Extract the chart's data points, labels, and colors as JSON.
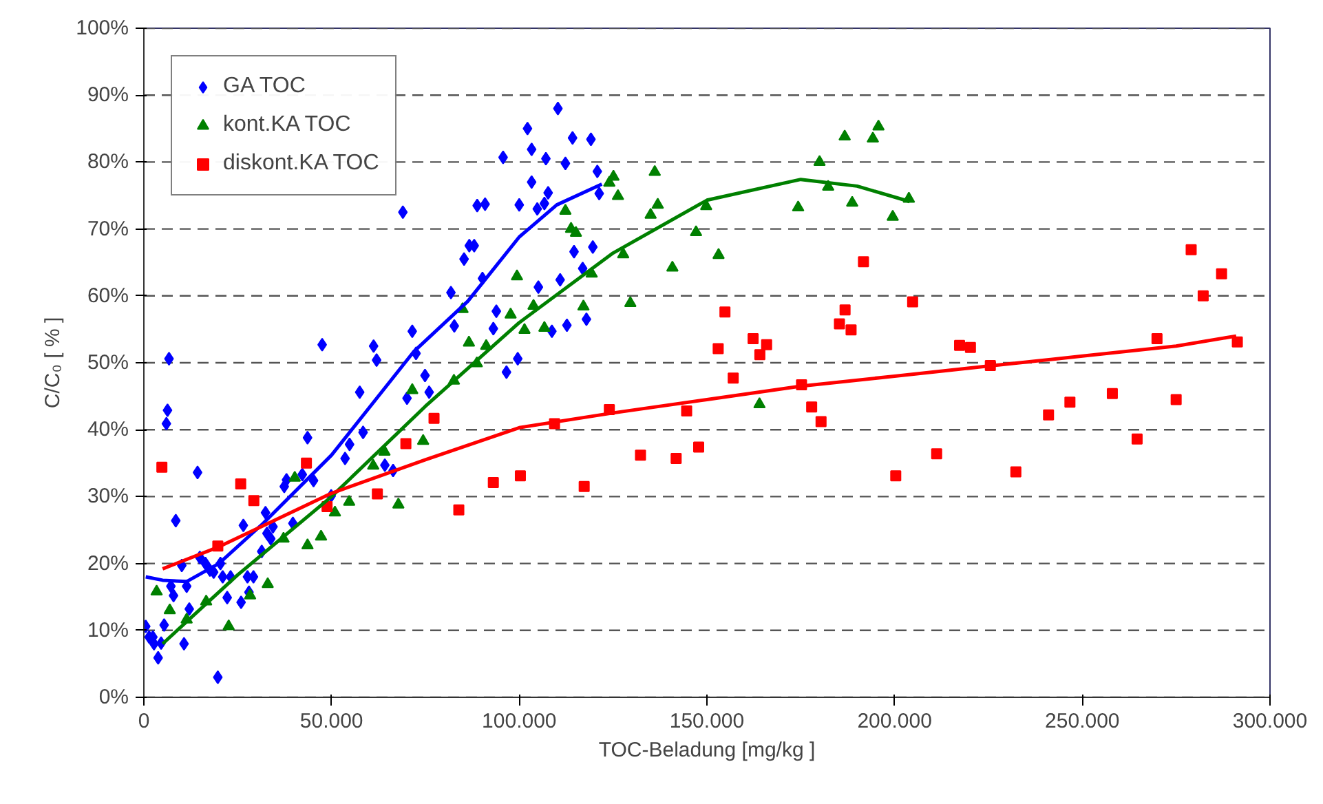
{
  "chart_data": {
    "type": "scatter",
    "xlabel": "TOC-Beladung [mg/kg ]",
    "ylabel": "C/C₀ [ % ]",
    "xlim": [
      0,
      300000
    ],
    "ylim": [
      0,
      100
    ],
    "xticks": [
      {
        "value": 0,
        "label": "0"
      },
      {
        "value": 50000,
        "label": "50.000"
      },
      {
        "value": 100000,
        "label": "100.000"
      },
      {
        "value": 150000,
        "label": "150.000"
      },
      {
        "value": 200000,
        "label": "200.000"
      },
      {
        "value": 250000,
        "label": "250.000"
      },
      {
        "value": 300000,
        "label": "300.000"
      }
    ],
    "yticks": [
      {
        "value": 0,
        "label": "0%"
      },
      {
        "value": 10,
        "label": "10%"
      },
      {
        "value": 20,
        "label": "20%"
      },
      {
        "value": 30,
        "label": "30%"
      },
      {
        "value": 40,
        "label": "40%"
      },
      {
        "value": 50,
        "label": "50%"
      },
      {
        "value": 60,
        "label": "60%"
      },
      {
        "value": 70,
        "label": "70%"
      },
      {
        "value": 80,
        "label": "80%"
      },
      {
        "value": 90,
        "label": "90%"
      },
      {
        "value": 100,
        "label": "100%"
      }
    ],
    "grid": "y",
    "legend": "top left",
    "series": [
      {
        "name": "GA TOC",
        "marker": "diamond",
        "color": "#0000ff",
        "x": [
          500,
          1400,
          2400,
          2700,
          3800,
          4600,
          5400,
          6000,
          6300,
          6700,
          7200,
          7900,
          8500,
          10100,
          10700,
          11400,
          12100,
          14300,
          14900,
          16400,
          17600,
          18600,
          19700,
          20400,
          21000,
          22200,
          23100,
          25900,
          26500,
          28000,
          27600,
          29200,
          31400,
          32400,
          32800,
          33800,
          34400,
          37400,
          38000,
          39700,
          42200,
          43600,
          45200,
          47500,
          49900,
          53600,
          54800,
          57500,
          58400,
          61200,
          62000,
          64200,
          66400,
          70100,
          71500,
          69000,
          72500,
          74900,
          76000,
          81800,
          82700,
          85300,
          86700,
          88000,
          88800,
          90200,
          90900,
          93900,
          93100,
          95700,
          96600,
          99600,
          100000,
          102200,
          103300,
          103300,
          104800,
          105100,
          106700,
          107100,
          107700,
          108700,
          110300,
          110900,
          112300,
          112700,
          114200,
          114600,
          116900,
          117900,
          119100,
          119600,
          120800,
          121300
        ],
        "values": [
          10.6,
          9.0,
          9.0,
          8.0,
          5.9,
          8.1,
          10.8,
          40.9,
          42.9,
          50.6,
          16.6,
          15.2,
          26.4,
          19.7,
          8.0,
          16.6,
          13.2,
          33.6,
          20.9,
          20.0,
          19.0,
          18.7,
          3.0,
          20.0,
          18.0,
          14.9,
          18.0,
          14.2,
          25.7,
          15.7,
          18.0,
          18.0,
          21.8,
          27.6,
          24.5,
          23.7,
          25.5,
          31.5,
          32.5,
          26.0,
          33.3,
          38.8,
          32.4,
          52.7,
          30.1,
          35.7,
          37.8,
          45.6,
          39.6,
          52.5,
          50.4,
          34.7,
          33.9,
          44.7,
          54.7,
          72.5,
          51.4,
          48.1,
          45.6,
          60.5,
          55.5,
          65.5,
          67.5,
          67.5,
          73.5,
          62.6,
          73.7,
          57.7,
          55.1,
          80.7,
          48.6,
          50.6,
          73.6,
          85.0,
          81.9,
          77.0,
          73.0,
          61.3,
          73.8,
          80.5,
          75.4,
          54.7,
          88.0,
          62.4,
          79.8,
          55.6,
          83.6,
          66.6,
          64.1,
          56.5,
          83.4,
          67.3,
          78.6,
          75.3
        ]
      },
      {
        "name": "kont.KA TOC",
        "marker": "triangle",
        "color": "#008000",
        "x": [
          3400,
          6900,
          11400,
          16600,
          22600,
          28300,
          33000,
          37200,
          40200,
          43600,
          47200,
          50900,
          54700,
          61100,
          64100,
          67800,
          71500,
          74400,
          82600,
          84900,
          86600,
          88700,
          91200,
          97700,
          99400,
          101400,
          103800,
          106700,
          112300,
          113800,
          115100,
          117100,
          119300,
          124000,
          125100,
          126300,
          127700,
          129600,
          135000,
          136100,
          136900,
          140800,
          147100,
          149800,
          153100,
          164000,
          174300,
          180000,
          182300,
          186700,
          188700,
          194200,
          195700,
          199500,
          203800
        ],
        "values": [
          15.8,
          13.0,
          11.6,
          14.3,
          10.6,
          15.2,
          16.9,
          23.7,
          32.8,
          22.7,
          24.0,
          27.6,
          29.2,
          34.6,
          36.7,
          28.8,
          45.9,
          38.3,
          47.3,
          58.0,
          53.0,
          49.9,
          52.5,
          57.2,
          62.9,
          54.9,
          58.5,
          55.2,
          72.7,
          70.0,
          69.4,
          58.4,
          63.3,
          76.9,
          77.8,
          74.9,
          66.2,
          58.9,
          72.1,
          78.5,
          73.6,
          64.2,
          69.5,
          73.4,
          66.1,
          43.8,
          73.2,
          80.0,
          76.3,
          83.8,
          73.9,
          83.5,
          85.3,
          71.8,
          74.5
        ]
      },
      {
        "name": "diskont.KA TOC",
        "marker": "square",
        "color": "#ff0000",
        "x": [
          4800,
          19700,
          25800,
          29300,
          43300,
          48800,
          62200,
          69800,
          77300,
          83900,
          93100,
          100300,
          109400,
          117300,
          124000,
          132300,
          141800,
          147800,
          144600,
          153000,
          154800,
          157000,
          162300,
          164100,
          165900,
          175200,
          177900,
          180400,
          185300,
          186800,
          188400,
          191700,
          200300,
          204800,
          211200,
          217300,
          220200,
          225500,
          232300,
          241000,
          246700,
          258000,
          264600,
          269900,
          275000,
          279000,
          282200,
          287100,
          291300
        ],
        "values": [
          34.4,
          22.6,
          31.9,
          29.4,
          35.0,
          28.5,
          30.4,
          37.9,
          41.7,
          28.0,
          32.1,
          33.1,
          40.9,
          31.5,
          43.0,
          36.2,
          35.7,
          37.4,
          42.8,
          52.1,
          57.6,
          47.7,
          53.6,
          51.2,
          52.7,
          46.7,
          43.4,
          41.2,
          55.8,
          57.9,
          54.9,
          65.1,
          33.1,
          59.1,
          36.4,
          52.6,
          52.3,
          49.6,
          33.7,
          42.2,
          44.1,
          45.4,
          38.6,
          53.6,
          44.5,
          66.9,
          60.0,
          63.3,
          53.1
        ]
      },
      {
        "type": "line",
        "color": "#0000ff",
        "x": [
          500,
          5000,
          11400,
          20000,
          31600,
          50000,
          71800,
          86300,
          100000,
          110000,
          122000
        ],
        "values": [
          18,
          17.5,
          17.3,
          20,
          25.9,
          36.2,
          51.6,
          59.2,
          68.8,
          73.6,
          76.7
        ]
      },
      {
        "type": "line",
        "color": "#008000",
        "x": [
          5000,
          25000,
          50000,
          75000,
          100000,
          125000,
          150000,
          175000,
          190000,
          204000
        ],
        "values": [
          8,
          18.3,
          30,
          43.5,
          56,
          66.4,
          74.3,
          77.4,
          76.4,
          74.1
        ]
      },
      {
        "type": "line",
        "color": "#ff0000",
        "x": [
          5000,
          20000,
          50000,
          75000,
          100000,
          125000,
          150000,
          175000,
          200000,
          225000,
          250000,
          275000,
          291000
        ],
        "values": [
          19.2,
          22.5,
          30.5,
          35.5,
          40.3,
          42.5,
          44.5,
          46.5,
          48,
          49.5,
          51,
          52.5,
          54
        ]
      }
    ]
  }
}
